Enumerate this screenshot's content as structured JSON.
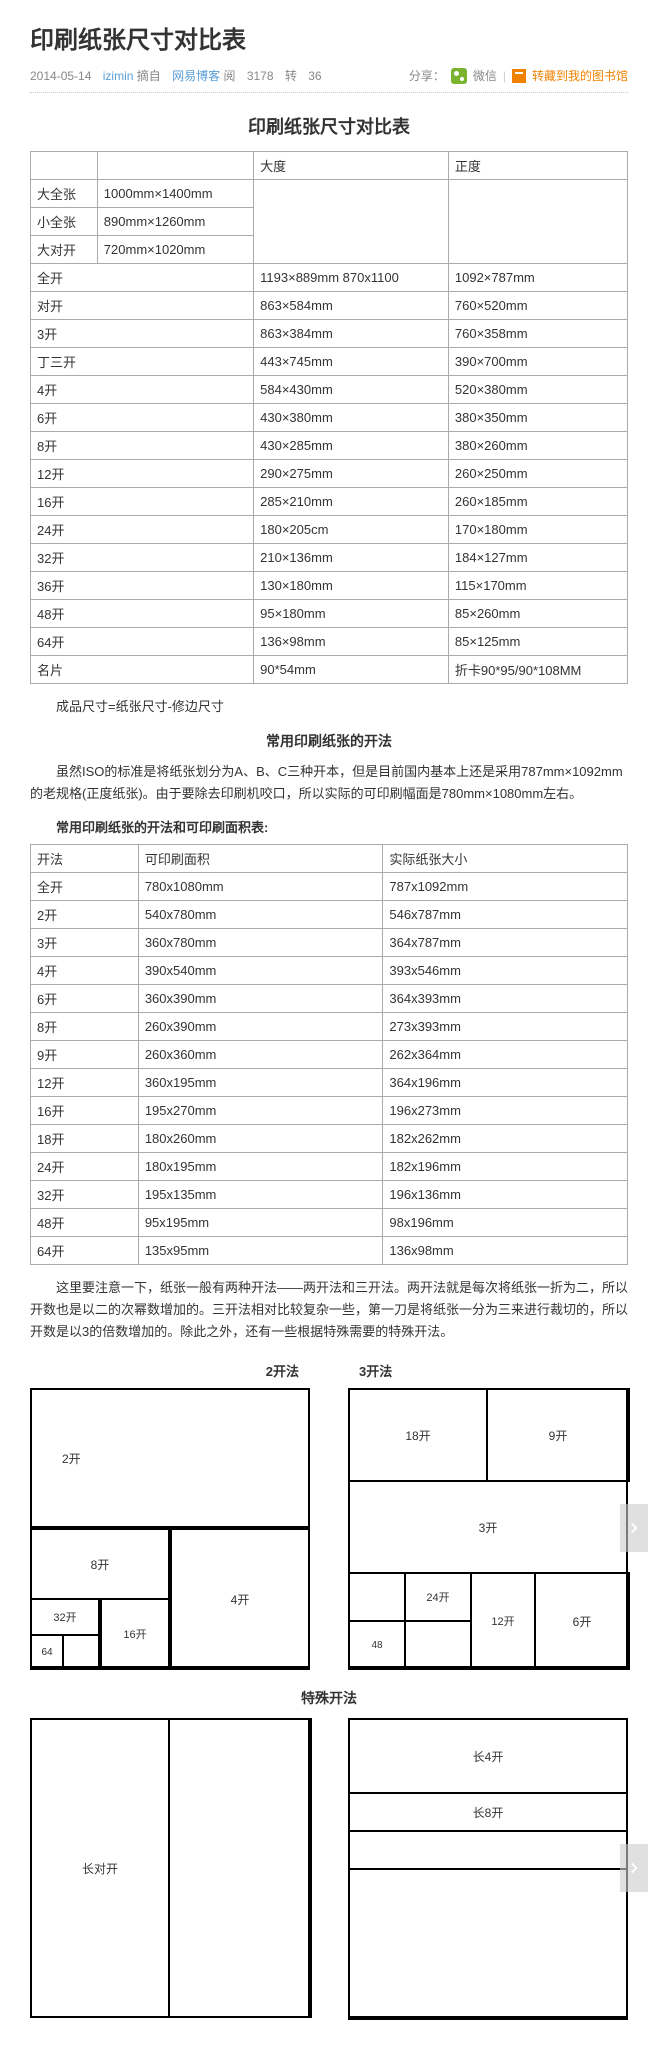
{
  "page_title": "印刷纸张尺寸对比表",
  "meta": {
    "date": "2014-05-14",
    "author": "izimin",
    "source_prefix": "摘自",
    "source": "网易博客",
    "reads_label": "阅",
    "reads": "3178",
    "shares_label": "转",
    "shares": "36",
    "share_text": "分享：",
    "wechat": "微信",
    "save": "转藏到我的图书馆"
  },
  "section1_title": "印刷纸张尺寸对比表",
  "table1": {
    "headers": [
      "",
      "",
      "大度",
      "正度"
    ],
    "rows": [
      [
        "大全张",
        "1000mm×1400mm",
        "",
        ""
      ],
      [
        "小全张",
        "890mm×1260mm",
        "",
        ""
      ],
      [
        "大对开",
        "720mm×1020mm",
        "",
        ""
      ],
      [
        "全开",
        "",
        "1193×889mm 870x1100",
        "1092×787mm"
      ],
      [
        "对开",
        "",
        "863×584mm",
        "760×520mm"
      ],
      [
        "3开",
        "",
        "863×384mm",
        "760×358mm"
      ],
      [
        "丁三开",
        "",
        "443×745mm",
        "390×700mm"
      ],
      [
        "4开",
        "",
        "584×430mm",
        "520×380mm"
      ],
      [
        "6开",
        "",
        "430×380mm",
        "380×350mm"
      ],
      [
        "8开",
        "",
        "430×285mm",
        "380×260mm"
      ],
      [
        "12开",
        "",
        "290×275mm",
        "260×250mm"
      ],
      [
        "16开",
        "",
        "285×210mm",
        "260×185mm"
      ],
      [
        "24开",
        "",
        "180×205cm",
        "170×180mm"
      ],
      [
        "32开",
        "",
        "210×136mm",
        "184×127mm"
      ],
      [
        "36开",
        "",
        "130×180mm",
        "115×170mm"
      ],
      [
        "48开",
        "",
        "95×180mm",
        "85×260mm"
      ],
      [
        "64开",
        "",
        "136×98mm",
        "85×125mm"
      ],
      [
        "名片",
        "",
        "90*54mm",
        "折卡90*95/90*108MM"
      ]
    ],
    "span_col3_rows": 3
  },
  "note1": "成品尺寸=纸张尺寸-修边尺寸",
  "section2_title": "常用印刷纸张的开法",
  "para1": "虽然ISO的标准是将纸张划分为A、B、C三种开本，但是目前国内基本上还是采用787mm×1092mm的老规格(正度纸张)。由于要除去印刷机咬口，所以实际的可印刷幅面是780mm×1080mm左右。",
  "section2_sub": "常用印刷纸张的开法和可印刷面积表:",
  "table2": {
    "headers": [
      "开法",
      "可印刷面积",
      "实际纸张大小"
    ],
    "rows": [
      [
        "全开",
        "780x1080mm",
        "787x1092mm"
      ],
      [
        "2开",
        "540x780mm",
        "546x787mm"
      ],
      [
        "3开",
        "360x780mm",
        "364x787mm"
      ],
      [
        "4开",
        "390x540mm",
        "393x546mm"
      ],
      [
        "6开",
        "360x390mm",
        "364x393mm"
      ],
      [
        "8开",
        "260x390mm",
        "273x393mm"
      ],
      [
        "9开",
        "260x360mm",
        "262x364mm"
      ],
      [
        "12开",
        "360x195mm",
        "364x196mm"
      ],
      [
        "16开",
        "195x270mm",
        "196x273mm"
      ],
      [
        "18开",
        "180x260mm",
        "182x262mm"
      ],
      [
        "24开",
        "180x195mm",
        "182x196mm"
      ],
      [
        "32开",
        "195x135mm",
        "196x136mm"
      ],
      [
        "48开",
        "95x195mm",
        "98x196mm"
      ],
      [
        "64开",
        "135x95mm",
        "136x98mm"
      ]
    ]
  },
  "para2": "这里要注意一下，纸张一般有两种开法——两开法和三开法。两开法就是每次将纸张一折为二，所以开数也是以二的次幂数增加的。三开法相对比较复杂一些，第一刀是将纸张一分为三来进行裁切的，所以开数是以3的倍数增加的。除此之外，还有一些根据特殊需要的特殊开法。",
  "diag1_label1": "2开法",
  "diag1_label2": "3开法",
  "diag2_title": "特殊开法",
  "d2c": {
    "k2": "2开",
    "k4": "4开",
    "k8": "8开",
    "k16": "16开",
    "k32": "32开",
    "k64": "64"
  },
  "d3c": {
    "k3": "3开",
    "k6": "6开",
    "k9": "9开",
    "k12": "12开",
    "k18": "18开",
    "k24": "24开",
    "k48": "48"
  },
  "spc": {
    "cdk": "长对开",
    "c4k": "长4开",
    "c8k": "长8开"
  }
}
